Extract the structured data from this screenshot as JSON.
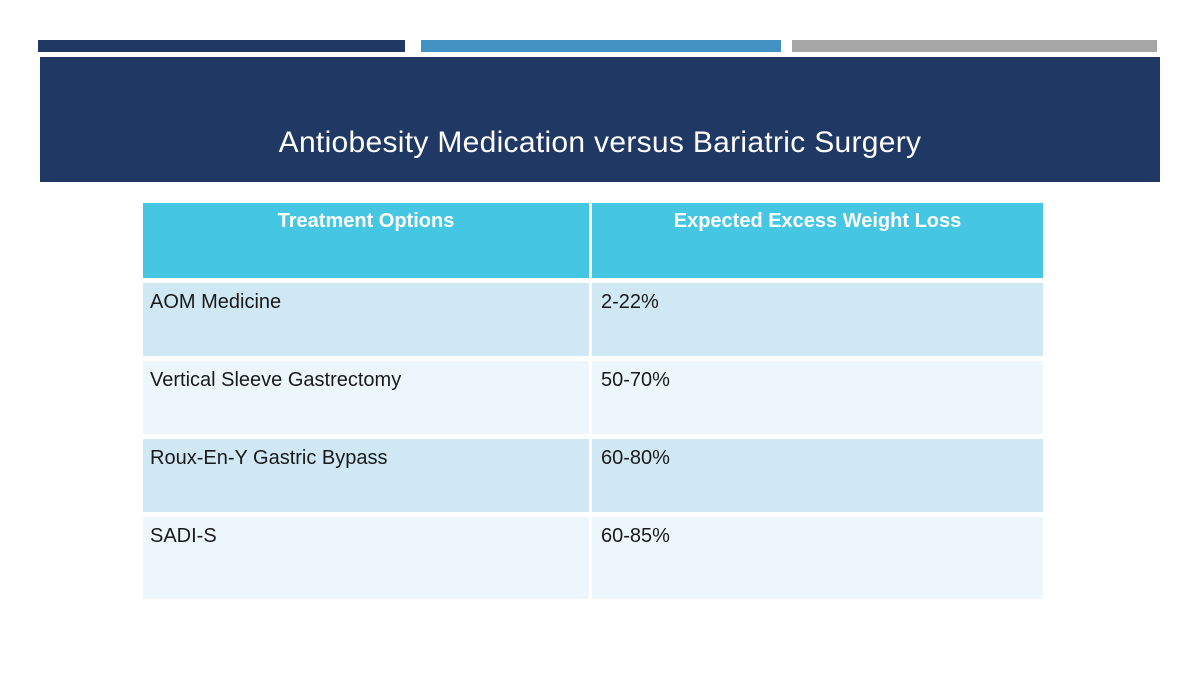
{
  "slide": {
    "title": "Antiobesity Medication versus Bariatric Surgery",
    "colors": {
      "navy": "#1F3864",
      "accent_blue": "#4292C4",
      "accent_gray": "#A6A6A6",
      "table_header_cyan": "#45C6E3",
      "row_band_light": "#CFE8F3",
      "row_band_lighter": "#ECF6FB"
    }
  },
  "table": {
    "columns": [
      {
        "label": "Treatment Options"
      },
      {
        "label": "Expected Excess Weight Loss"
      }
    ],
    "rows": [
      {
        "treatment": "AOM Medicine",
        "ewl": "2-22%"
      },
      {
        "treatment": "Vertical Sleeve Gastrectomy",
        "ewl": "50-70%"
      },
      {
        "treatment": "Roux-En-Y Gastric Bypass",
        "ewl": "60-80%"
      },
      {
        "treatment": "SADI-S",
        "ewl": "60-85%"
      }
    ]
  }
}
